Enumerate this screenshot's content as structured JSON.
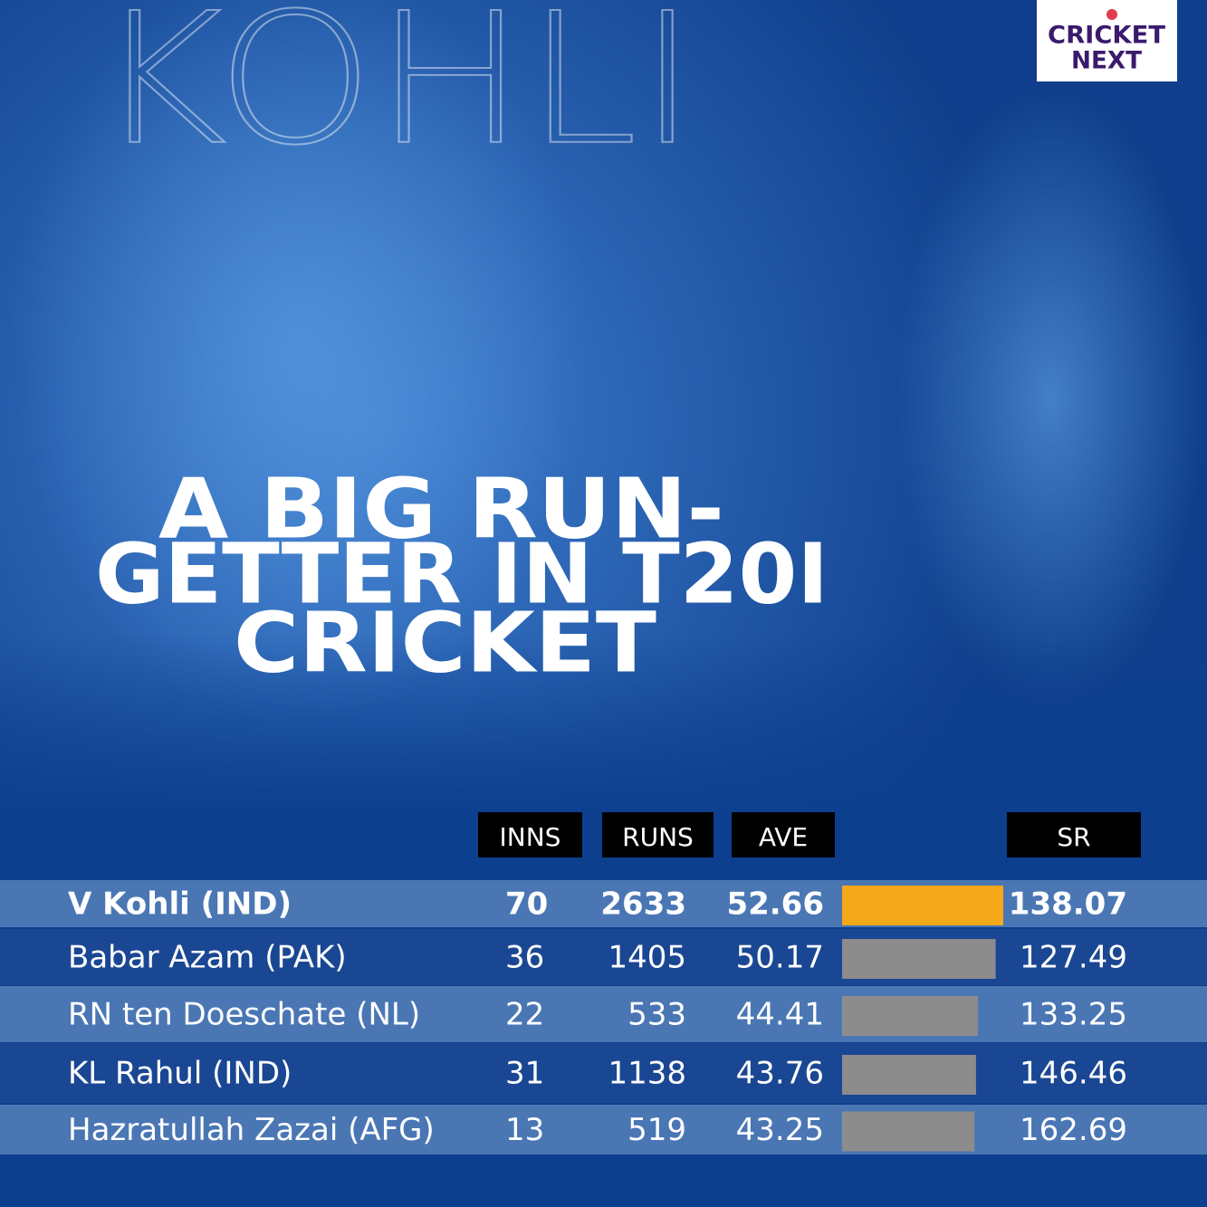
{
  "background_name": "KOHLI",
  "logo": {
    "line1": "CRICKET",
    "line2": "NEXT"
  },
  "title_lines": [
    "A BIG RUN-",
    "GETTER IN T20I",
    "CRICKET"
  ],
  "table": {
    "headers": [
      "INNS",
      "RUNS",
      "AVE",
      "SR"
    ],
    "rows": [
      {
        "name": "V Kohli (IND)",
        "inns": 70,
        "runs": 2633,
        "ave": 52.66,
        "sr": 138.07,
        "highlight": true
      },
      {
        "name": "Babar Azam (PAK)",
        "inns": 36,
        "runs": 1405,
        "ave": 50.17,
        "sr": 127.49
      },
      {
        "name": "RN ten Doeschate (NL)",
        "inns": 22,
        "runs": 533,
        "ave": 44.41,
        "sr": 133.25
      },
      {
        "name": "KL Rahul (IND)",
        "inns": 31,
        "runs": 1138,
        "ave": 43.76,
        "sr": 146.46
      },
      {
        "name": "Hazratullah Zazai (AFG)",
        "inns": 13,
        "runs": 519,
        "ave": 43.25,
        "sr": 162.69
      }
    ]
  }
}
